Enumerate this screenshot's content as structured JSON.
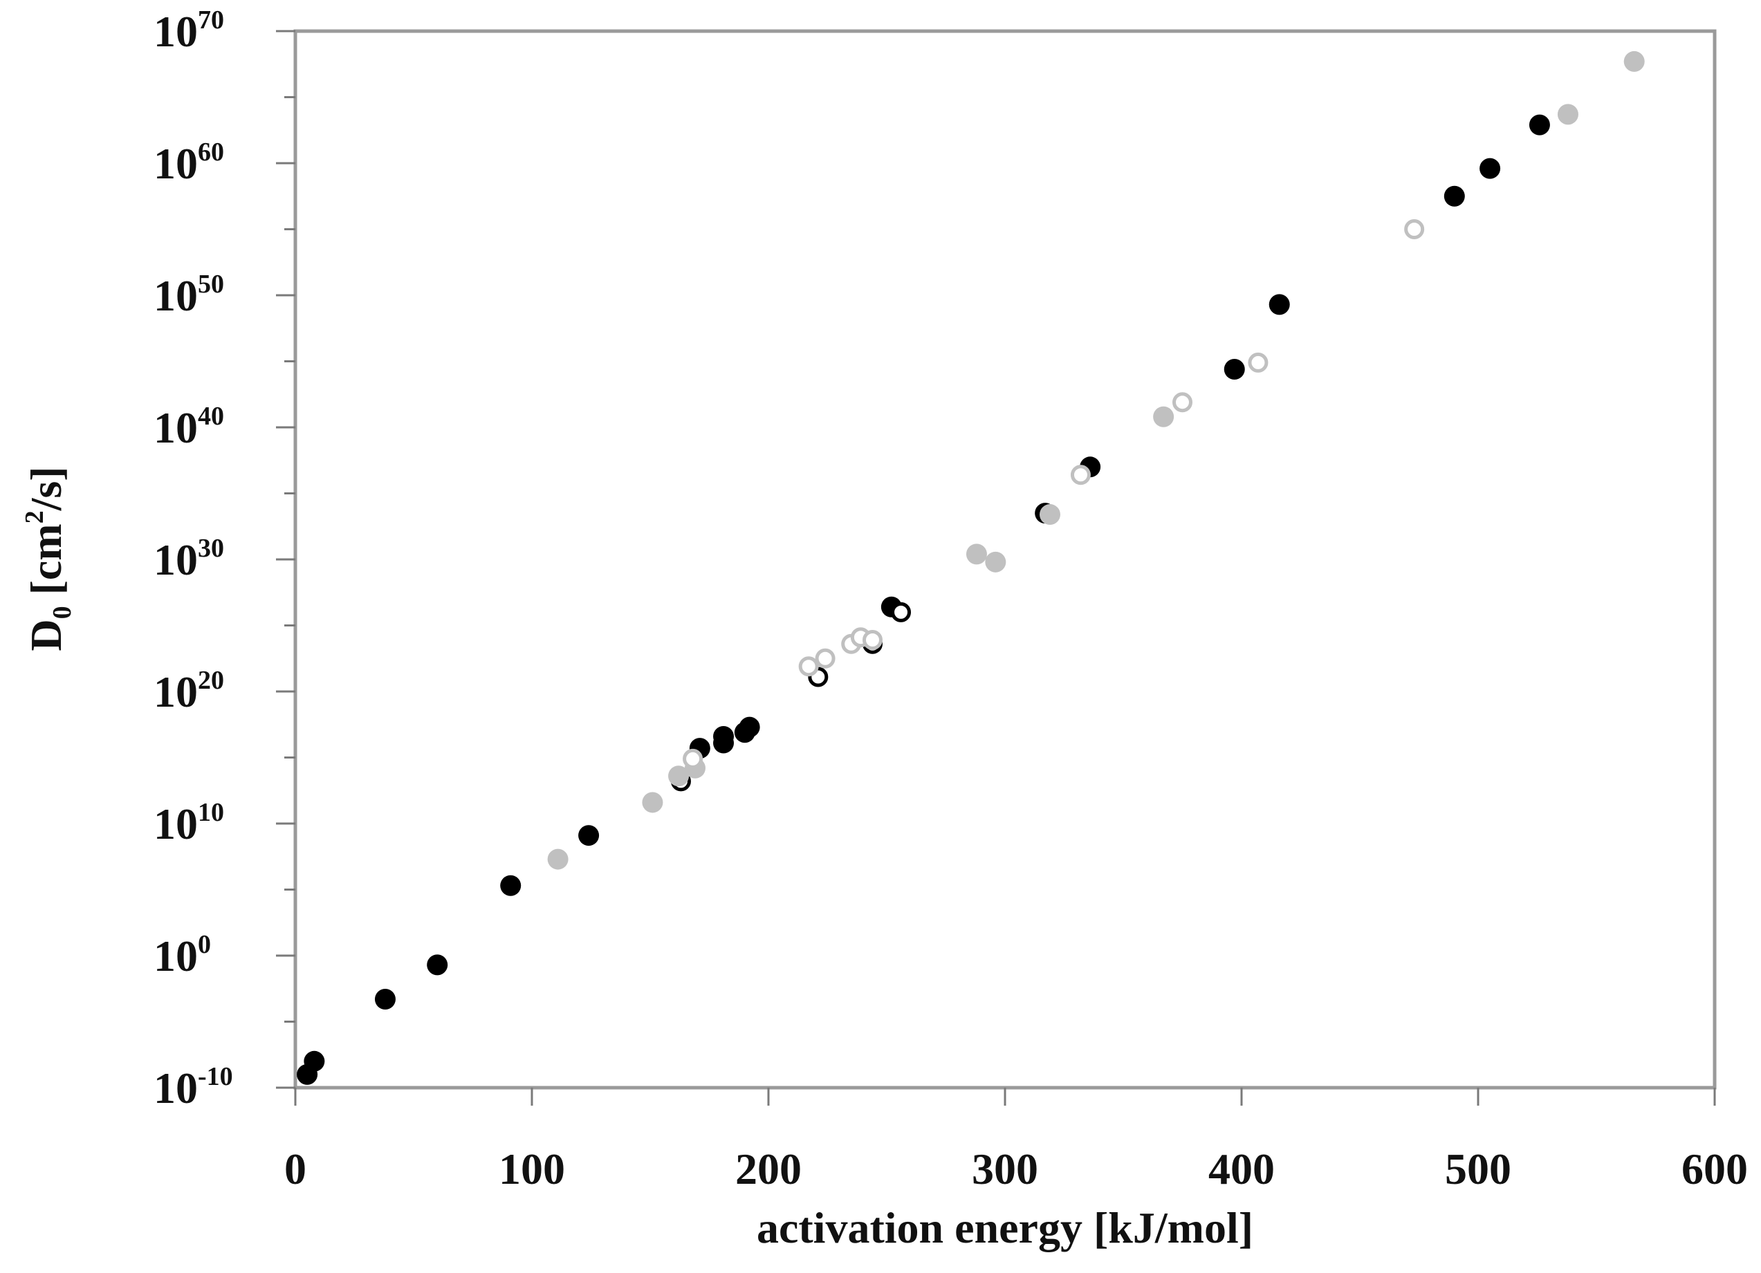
{
  "chart_data": {
    "type": "scatter",
    "title": "",
    "xlabel": "activation energy [kJ/mol]",
    "ylabel": "D0 [cm²/s]",
    "ylabel_parts": {
      "base": "D",
      "sub": "0",
      "unit_start": " [cm",
      "sup": "2",
      "unit_end": "/s]"
    },
    "xlim": [
      0,
      600
    ],
    "ylim_log10": [
      -10,
      70
    ],
    "x_ticks": [
      {
        "value": 0,
        "label": "0"
      },
      {
        "value": 100,
        "label": "100"
      },
      {
        "value": 200,
        "label": "200"
      },
      {
        "value": 300,
        "label": "300"
      },
      {
        "value": 400,
        "label": "400"
      },
      {
        "value": 500,
        "label": "500"
      },
      {
        "value": 600,
        "label": "600"
      }
    ],
    "y_ticks": [
      {
        "value": -10,
        "base": "10",
        "exp": "-10"
      },
      {
        "value": 0,
        "base": "10",
        "exp": "0"
      },
      {
        "value": 10,
        "base": "10",
        "exp": "10"
      },
      {
        "value": 20,
        "base": "10",
        "exp": "20"
      },
      {
        "value": 30,
        "base": "10",
        "exp": "30"
      },
      {
        "value": 40,
        "base": "10",
        "exp": "40"
      },
      {
        "value": 50,
        "base": "10",
        "exp": "50"
      },
      {
        "value": 60,
        "base": "10",
        "exp": "60"
      },
      {
        "value": 70,
        "base": "10",
        "exp": "70"
      }
    ],
    "y_minor_step": 5,
    "grid": false,
    "legend": "none",
    "series": [
      {
        "name": "black filled",
        "marker": "filled",
        "color": "#000000",
        "x": [
          5,
          8,
          38,
          60,
          91,
          124,
          171,
          181,
          181,
          190,
          192,
          252,
          317,
          336,
          397,
          416,
          490,
          505,
          526
        ],
        "log10_y": [
          -9.0,
          -8.0,
          -3.3,
          -0.7,
          5.3,
          9.1,
          15.7,
          16.6,
          16.1,
          16.9,
          17.3,
          26.4,
          33.5,
          37.0,
          44.4,
          49.3,
          57.5,
          59.6,
          62.9
        ]
      },
      {
        "name": "black open",
        "marker": "open",
        "color": "#000000",
        "x": [
          163,
          221,
          244,
          256
        ],
        "log10_y": [
          13.2,
          21.1,
          23.6,
          26.0
        ]
      },
      {
        "name": "gray filled",
        "marker": "filled",
        "color": "#c0c0c0",
        "x": [
          111,
          151,
          162,
          169,
          288,
          296,
          319,
          367,
          538,
          566
        ],
        "log10_y": [
          7.3,
          11.6,
          13.6,
          14.2,
          30.4,
          29.8,
          33.4,
          40.8,
          63.7,
          67.7
        ]
      },
      {
        "name": "gray open",
        "marker": "open",
        "color": "#c0c0c0",
        "x": [
          168,
          217,
          224,
          235,
          239,
          244,
          332,
          375,
          407,
          473
        ],
        "log10_y": [
          14.9,
          21.9,
          22.5,
          23.6,
          24.1,
          23.9,
          36.4,
          41.9,
          44.9,
          55.0
        ]
      }
    ]
  }
}
